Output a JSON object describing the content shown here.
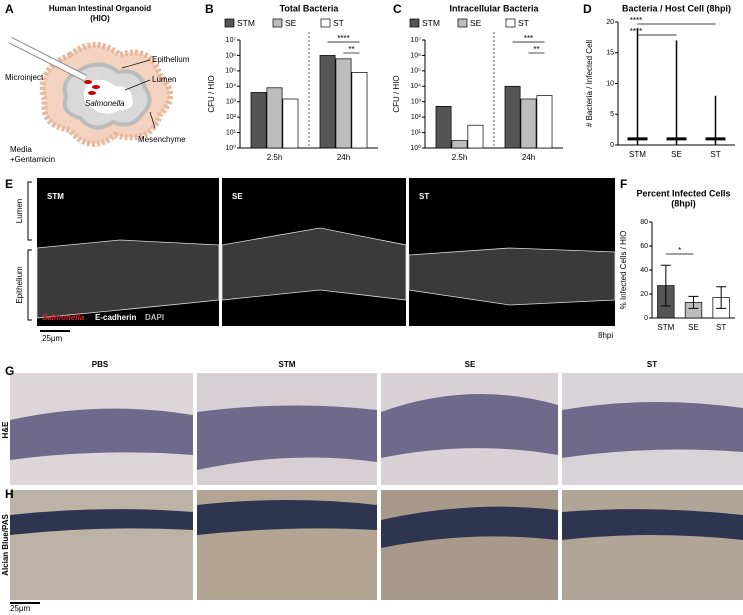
{
  "panel_letters": [
    "A",
    "B",
    "C",
    "D",
    "E",
    "F",
    "G",
    "H"
  ],
  "diagram_a": {
    "title_lines": [
      "Human Intestinal Organoid",
      "(HIO)"
    ],
    "labels": [
      "Microinject",
      "Epithelium",
      "Lumen",
      "Salmonella",
      "Mesenchyme",
      "Media",
      "+Gentamicin"
    ]
  },
  "chart_data": [
    {
      "type": "grouped_bar",
      "title": "Total Bacteria",
      "y_label": "CFU / HIO",
      "log_y": true,
      "categories": [
        "2.5h",
        "24h"
      ],
      "series": [
        {
          "name": "STM",
          "color": "#555555",
          "values": [
            4000,
            1000000
          ]
        },
        {
          "name": "SE",
          "color": "#bdbdbd",
          "values": [
            8000,
            600000
          ]
        },
        {
          "name": "ST",
          "color": "#ffffff",
          "values": [
            1500,
            80000
          ]
        }
      ],
      "ylim": [
        1,
        10000000
      ],
      "yticks": [
        {
          "value": 1,
          "label": "10⁰"
        },
        {
          "value": 10,
          "label": "10¹"
        },
        {
          "value": 100,
          "label": "10²"
        },
        {
          "value": 1000,
          "label": "10³"
        },
        {
          "value": 10000,
          "label": "10⁴"
        },
        {
          "value": 100000,
          "label": "10⁵"
        },
        {
          "value": 1000000,
          "label": "10⁶"
        },
        {
          "value": 10000000,
          "label": "10⁷"
        }
      ],
      "annotations": [
        "****",
        "**"
      ]
    },
    {
      "type": "grouped_bar",
      "title": "Intracellular Bacteria",
      "y_label": "CFU / HIO",
      "log_y": true,
      "categories": [
        "2.5h",
        "24h"
      ],
      "series": [
        {
          "name": "STM",
          "color": "#555555",
          "values": [
            500,
            10000
          ]
        },
        {
          "name": "SE",
          "color": "#bdbdbd",
          "values": [
            3,
            1500
          ]
        },
        {
          "name": "ST",
          "color": "#ffffff",
          "values": [
            30,
            2500
          ]
        }
      ],
      "ylim": [
        1,
        10000000
      ],
      "yticks": [
        {
          "value": 1,
          "label": "10⁰"
        },
        {
          "value": 10,
          "label": "10¹"
        },
        {
          "value": 100,
          "label": "10²"
        },
        {
          "value": 1000,
          "label": "10³"
        },
        {
          "value": 10000,
          "label": "10⁴"
        },
        {
          "value": 100000,
          "label": "10⁵"
        },
        {
          "value": 1000000,
          "label": "10⁶"
        },
        {
          "value": 10000000,
          "label": "10⁷"
        }
      ],
      "annotations": [
        "***",
        "**"
      ]
    },
    {
      "type": "strip",
      "title": "Bacteria / Host Cell (8hpi)",
      "y_label": "# Bacteria / Infected Cell",
      "categories": [
        "STM",
        "SE",
        "ST"
      ],
      "values": [
        1,
        1,
        1
      ],
      "max": [
        19,
        17,
        8
      ],
      "color": "#000000",
      "ylim": [
        0,
        20
      ],
      "yticks": [
        0,
        5,
        10,
        15,
        20
      ],
      "annotations": [
        "****",
        "****"
      ]
    },
    {
      "type": "bar",
      "title_lines": [
        "Percent Infected Cells",
        "(8hpi)"
      ],
      "y_label": "% Infected Cells / HIO",
      "categories": [
        "STM",
        "SE",
        "ST"
      ],
      "values": [
        27,
        13,
        17
      ],
      "errors": [
        17,
        5,
        9
      ],
      "colors": [
        "#555555",
        "#bdbdbd",
        "#ffffff"
      ],
      "ylim": [
        0,
        80
      ],
      "yticks": [
        0,
        20,
        40,
        60,
        80
      ],
      "annotations": [
        "*"
      ]
    }
  ],
  "panel_e": {
    "side_labels": [
      "Lumen",
      "Epithelium"
    ],
    "image_labels": [
      "STM",
      "SE",
      "ST"
    ],
    "legend": [
      "Salmonella",
      "E-cadherin",
      "DAPI"
    ],
    "scale": "25μm",
    "time": "8hpi"
  },
  "panel_g": {
    "row_label": "H&E",
    "columns": [
      "PBS",
      "STM",
      "SE",
      "ST"
    ]
  },
  "panel_h": {
    "row_label": "Alcian Blue/PAS",
    "scale": "25μm"
  }
}
